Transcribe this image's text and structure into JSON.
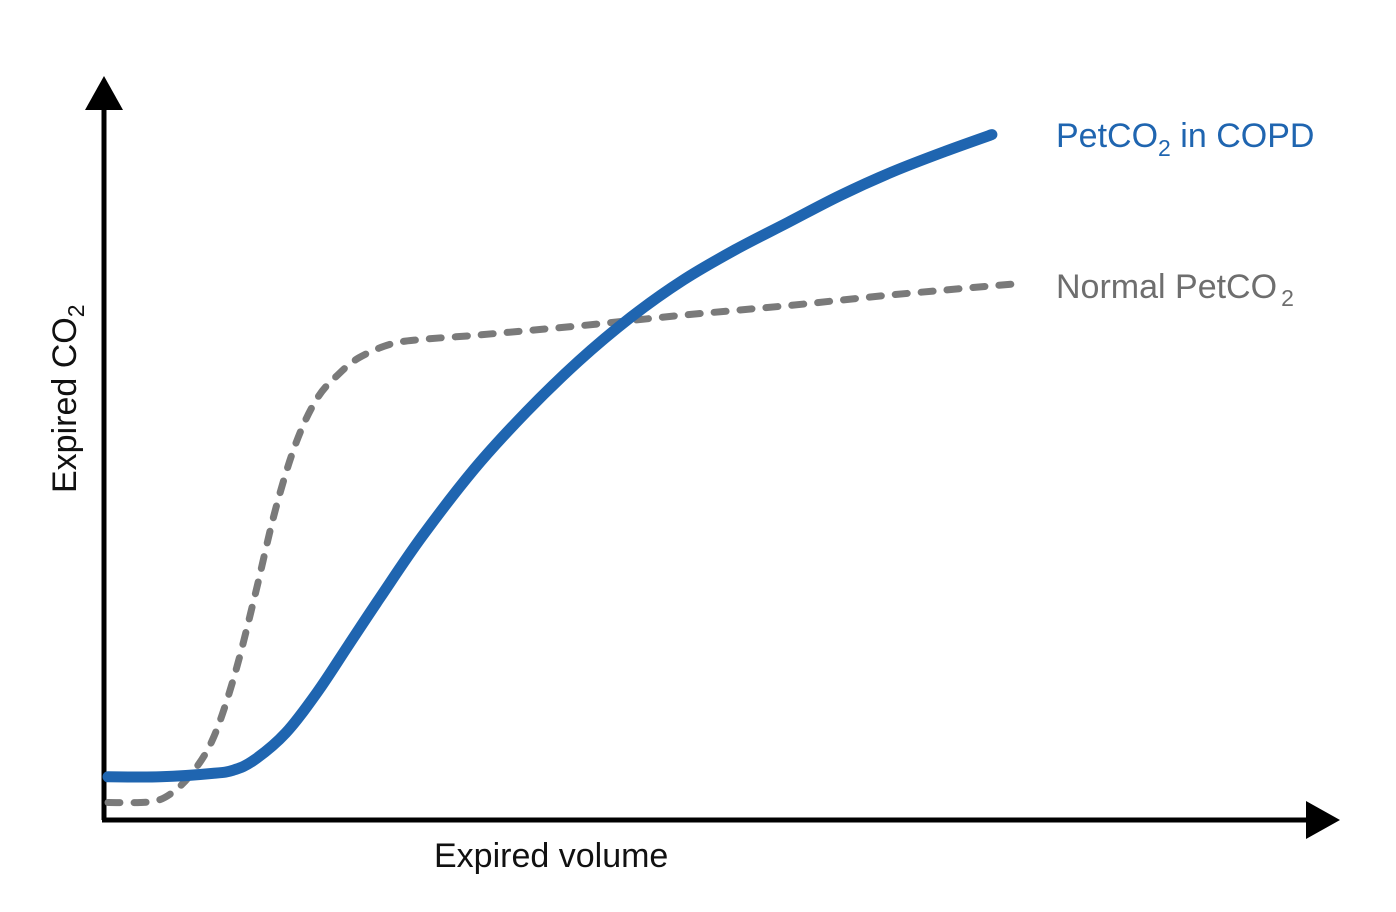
{
  "chart_data": {
    "type": "line",
    "title": "",
    "xlabel": "Expired volume",
    "ylabel": {
      "main": "Expired CO",
      "subscript": "2"
    },
    "xlim": [
      0,
      100
    ],
    "ylim": [
      0,
      100
    ],
    "grid": false,
    "legend": "inline labels at line ends",
    "series": [
      {
        "name": "PetCO2 in COPD",
        "label_main": "PetCO",
        "label_sub": "2",
        "label_tail": " in COPD",
        "color": "#1f65b0",
        "style": "solid",
        "x": [
          0,
          5,
          10,
          12,
          14,
          17,
          20,
          23,
          26,
          30,
          35,
          40,
          45,
          50,
          55,
          60,
          65,
          70,
          75,
          80,
          84.5
        ],
        "y": [
          5.5,
          5.5,
          6,
          6.5,
          8,
          12,
          18,
          25,
          32,
          41,
          51,
          59.5,
          67,
          73.5,
          79,
          83.5,
          87.5,
          91.5,
          95,
          98,
          100.5
        ]
      },
      {
        "name": "Normal PetCO2",
        "label_main": "Normal PetCO",
        "label_sub": "2",
        "label_tail": "",
        "color": "#7a7a7a",
        "style": "dashed",
        "x": [
          0,
          4,
          6,
          8,
          10,
          12,
          14,
          16,
          18,
          20,
          22,
          24,
          27,
          30,
          35,
          40,
          45,
          50,
          55,
          60,
          65,
          70,
          75,
          80,
          85,
          87.5
        ],
        "y": [
          1.7,
          1.8,
          3,
          6,
          11,
          20,
          32,
          45,
          55,
          61.5,
          65,
          67.5,
          69.5,
          70.2,
          70.8,
          71.5,
          72.2,
          73,
          73.8,
          74.5,
          75.2,
          76,
          76.8,
          77.5,
          78.2,
          78.5
        ]
      }
    ]
  }
}
